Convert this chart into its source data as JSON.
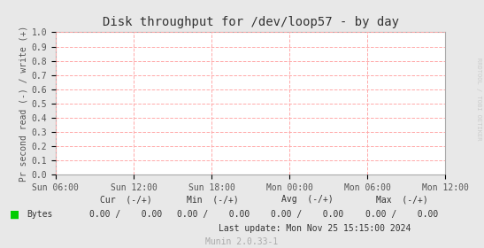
{
  "title": "Disk throughput for /dev/loop57 - by day",
  "ylabel": "Pr second read (-) / write (+)",
  "background_color": "#e8e8e8",
  "plot_bg_color": "#ffffff",
  "grid_color": "#ffaaaa",
  "ylim": [
    0.0,
    1.0
  ],
  "yticks": [
    0.0,
    0.1,
    0.2,
    0.3,
    0.4,
    0.5,
    0.6,
    0.7,
    0.8,
    0.9,
    1.0
  ],
  "xtick_labels": [
    "Sun 06:00",
    "Sun 12:00",
    "Sun 18:00",
    "Mon 00:00",
    "Mon 06:00",
    "Mon 12:00"
  ],
  "legend_label": "Bytes",
  "legend_color": "#00cc00",
  "cur_header": "Cur  (-/+)",
  "min_header": "Min  (-/+)",
  "avg_header": "Avg  (-/+)",
  "max_header": "Max  (-/+)",
  "cur_val1": "0.00",
  "cur_val2": "0.00",
  "min_val1": "0.00",
  "min_val2": "0.00",
  "avg_val1": "0.00",
  "avg_val2": "0.00",
  "max_val1": "0.00",
  "max_val2": "0.00",
  "last_update": "Last update: Mon Nov 25 15:15:00 2024",
  "munin_version": "Munin 2.0.33-1",
  "watermark": "RRDTOOL / TOBI OETIKER",
  "title_fontsize": 10,
  "axis_label_fontsize": 7,
  "tick_fontsize": 7,
  "footer_fontsize": 7,
  "watermark_fontsize": 5
}
